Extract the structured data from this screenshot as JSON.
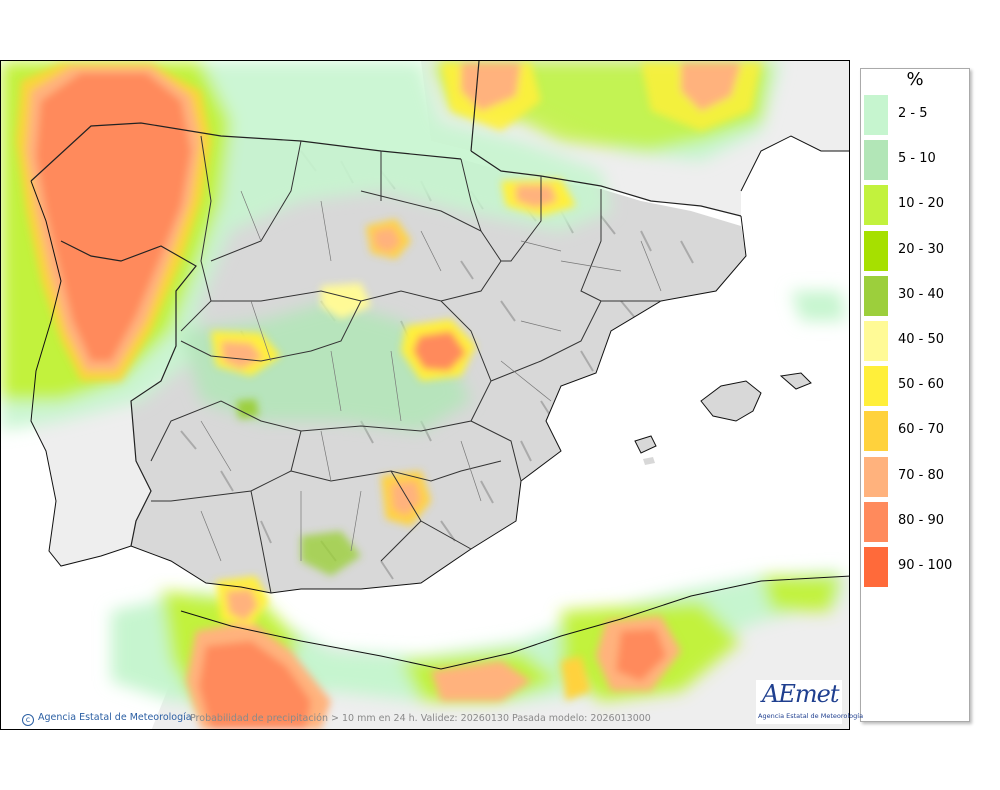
{
  "legend": {
    "title": "%",
    "items": [
      {
        "label": "2 - 5",
        "color": "#c6f5cf"
      },
      {
        "label": "5 - 10",
        "color": "#b2e6b7"
      },
      {
        "label": "10 - 20",
        "color": "#c2f23d"
      },
      {
        "label": "20 - 30",
        "color": "#a6e000"
      },
      {
        "label": "30 - 40",
        "color": "#9ccf3c"
      },
      {
        "label": "40 - 50",
        "color": "#fffa96"
      },
      {
        "label": "50 - 60",
        "color": "#ffef3a"
      },
      {
        "label": "60 - 70",
        "color": "#ffd23c"
      },
      {
        "label": "70 - 80",
        "color": "#ffb27d"
      },
      {
        "label": "80 - 90",
        "color": "#ff8a5c"
      },
      {
        "label": "90 - 100",
        "color": "#ff6a3a"
      }
    ]
  },
  "footer": {
    "credit": "Agencia Estatal de Meteorología",
    "caption": "Probabilidad de precipitación > 10 mm en 24 h. Validez: 20260130 Pasada modelo: 2026013000"
  },
  "logo": {
    "text": "AEmet",
    "subtitle": "Agencia Estatal de Meteorología"
  }
}
